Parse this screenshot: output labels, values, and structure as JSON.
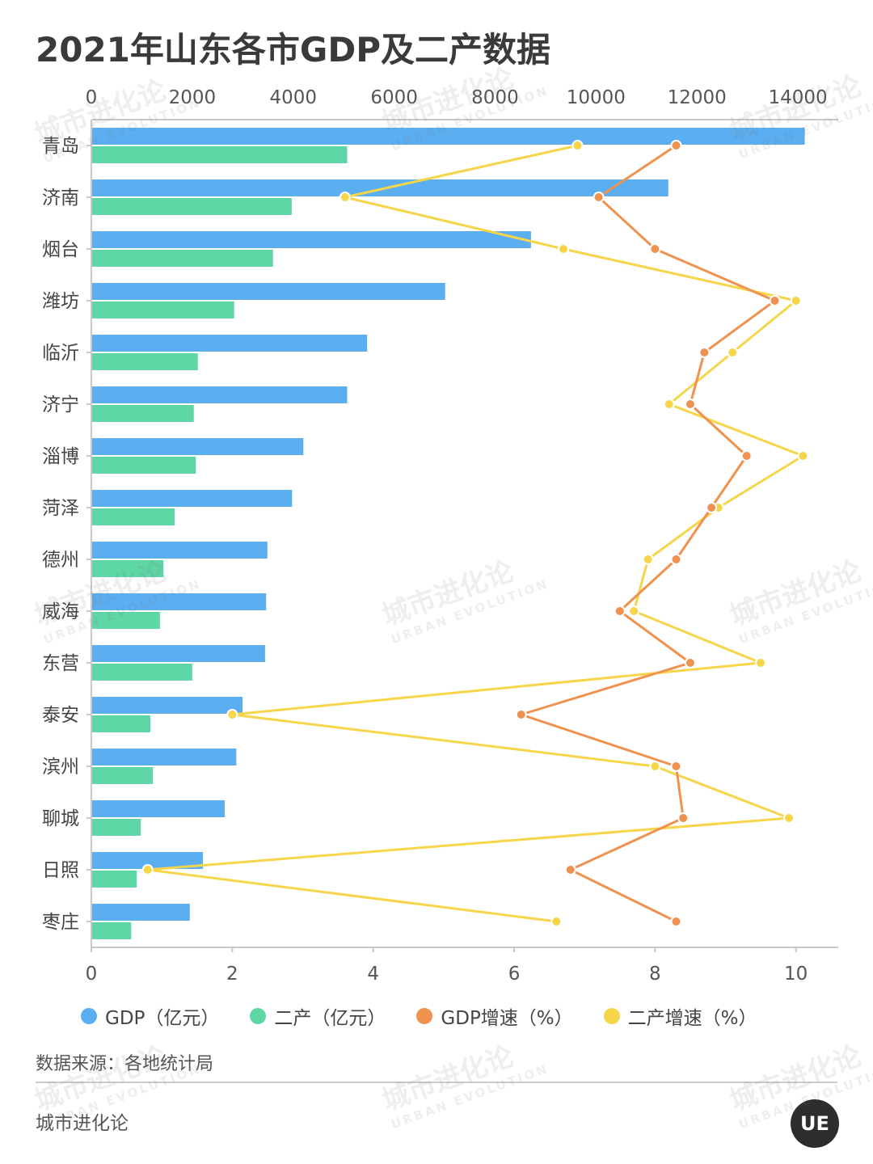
{
  "title": "2021年山东各市GDP及二产数据",
  "source": "数据来源：各地统计局",
  "brand": "城市进化论",
  "logo_text": "UE",
  "watermark": {
    "cn": "城市进化论",
    "en": "URBAN EVOLUTION"
  },
  "colors": {
    "gdp": "#5baef0",
    "secondary": "#5ed6a6",
    "gdp_growth": "#f0924f",
    "secondary_growth": "#f7d54a"
  },
  "chart_data": {
    "type": "bar",
    "orientation": "horizontal",
    "categories": [
      "青岛",
      "济南",
      "烟台",
      "潍坊",
      "临沂",
      "济宁",
      "淄博",
      "菏泽",
      "德州",
      "威海",
      "东营",
      "泰安",
      "滨州",
      "聊城",
      "日照",
      "枣庄"
    ],
    "top_axis": {
      "ticks": [
        0,
        2000,
        4000,
        6000,
        8000,
        10000,
        12000,
        14000
      ],
      "range": [
        0,
        14800
      ]
    },
    "bottom_axis": {
      "ticks": [
        0,
        2,
        4,
        6,
        8,
        10
      ],
      "range": [
        0,
        10.6
      ]
    },
    "series": [
      {
        "name": "GDP（亿元）",
        "type": "bar",
        "axis": "top",
        "values": [
          14136,
          11432,
          8712,
          7011,
          5465,
          5070,
          4201,
          3977,
          3488,
          3463,
          3442,
          2996,
          2873,
          2642,
          2211,
          1951
        ]
      },
      {
        "name": "二产（亿元）",
        "type": "bar",
        "axis": "top",
        "values": [
          5070,
          3970,
          3600,
          2830,
          2110,
          2030,
          2070,
          1650,
          1430,
          1360,
          2000,
          1170,
          1220,
          980,
          900,
          790
        ]
      },
      {
        "name": "GDP增速（%）",
        "type": "line",
        "axis": "bottom",
        "values": [
          8.3,
          7.2,
          8.0,
          9.7,
          8.7,
          8.5,
          9.3,
          8.8,
          8.3,
          7.5,
          8.5,
          6.1,
          8.3,
          8.4,
          6.8,
          8.3
        ]
      },
      {
        "name": "二产增速（%）",
        "type": "line",
        "axis": "bottom",
        "values": [
          6.9,
          3.6,
          6.7,
          10.0,
          9.1,
          8.2,
          10.1,
          8.9,
          7.9,
          7.7,
          9.5,
          2.0,
          8.0,
          9.9,
          0.8,
          6.6
        ]
      }
    ],
    "legend_position": "bottom",
    "grid": false
  }
}
